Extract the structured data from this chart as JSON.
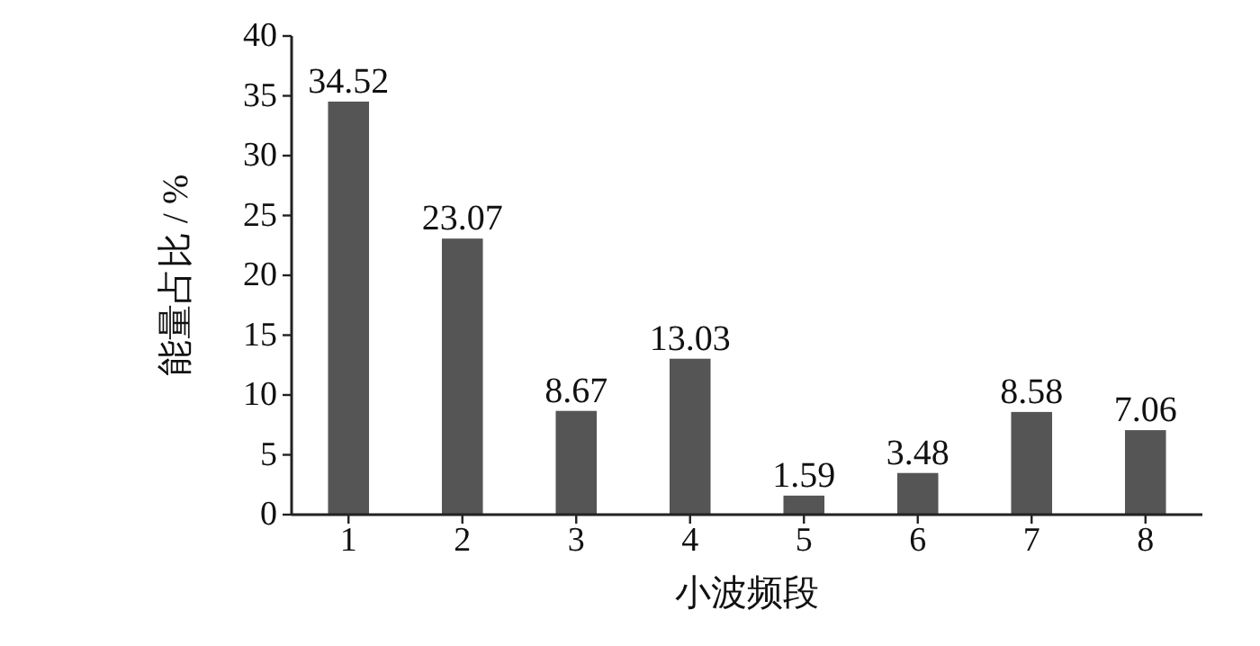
{
  "chart_data": {
    "type": "bar",
    "xlabel": "小波频段",
    "ylabel": "能量占比 / %",
    "categories": [
      "1",
      "2",
      "3",
      "4",
      "5",
      "6",
      "7",
      "8"
    ],
    "values": [
      34.52,
      23.07,
      8.67,
      13.03,
      1.59,
      3.48,
      8.58,
      7.06
    ],
    "color": "#555555",
    "ylim": [
      0,
      40
    ],
    "yticks": [
      0,
      5,
      10,
      15,
      20,
      25,
      30,
      35,
      40
    ],
    "data_labels": true,
    "grid": false
  }
}
